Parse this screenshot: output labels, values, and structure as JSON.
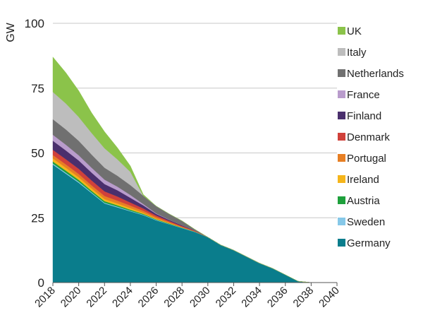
{
  "chart_data": {
    "type": "area",
    "stacked": true,
    "ylabel": "GW",
    "xlabel": "",
    "title": "",
    "ylim": [
      0,
      100
    ],
    "xlim": [
      2018,
      2040
    ],
    "yticks": [
      0,
      25,
      50,
      75,
      100
    ],
    "xticks": [
      2018,
      2020,
      2022,
      2024,
      2026,
      2028,
      2030,
      2032,
      2034,
      2036,
      2038,
      2040
    ],
    "grid": "horizontal",
    "legend_position": "right",
    "x": [
      2018,
      2019,
      2020,
      2021,
      2022,
      2023,
      2024,
      2025,
      2026,
      2027,
      2028,
      2029,
      2030,
      2031,
      2032,
      2033,
      2034,
      2035,
      2036,
      2037,
      2038,
      2039,
      2040
    ],
    "series": [
      {
        "name": "Germany",
        "color": "#0a7d8c",
        "values": [
          45.5,
          42,
          38.5,
          34.5,
          30.5,
          29,
          27.5,
          26,
          24,
          22.5,
          21,
          19.5,
          17.5,
          14.5,
          12.5,
          10,
          7.5,
          5.5,
          3,
          0.5,
          0,
          0,
          0
        ]
      },
      {
        "name": "Sweden",
        "color": "#86c8e8",
        "values": [
          0.4,
          0.4,
          0.4,
          0.3,
          0.3,
          0.3,
          0.2,
          0.2,
          0.2,
          0.1,
          0.1,
          0.1,
          0,
          0,
          0,
          0,
          0,
          0,
          0,
          0,
          0,
          0,
          0
        ]
      },
      {
        "name": "Austria",
        "color": "#1ea03c",
        "values": [
          0.8,
          0.8,
          0.7,
          0.6,
          0.6,
          0.5,
          0.4,
          0.3,
          0.2,
          0.2,
          0.1,
          0.1,
          0,
          0,
          0,
          0,
          0,
          0,
          0,
          0,
          0,
          0,
          0
        ]
      },
      {
        "name": "Ireland",
        "color": "#f5b51b",
        "values": [
          1.2,
          1.1,
          1.0,
          0.9,
          0.8,
          0.7,
          0.6,
          0.4,
          0.3,
          0.2,
          0.1,
          0,
          0,
          0,
          0,
          0,
          0,
          0,
          0,
          0,
          0,
          0,
          0
        ]
      },
      {
        "name": "Portugal",
        "color": "#e77f24",
        "values": [
          1.3,
          1.3,
          1.3,
          1.2,
          1.2,
          1.1,
          1.0,
          0.8,
          0.6,
          0.4,
          0.2,
          0.1,
          0,
          0,
          0,
          0,
          0,
          0,
          0,
          0,
          0,
          0,
          0
        ]
      },
      {
        "name": "Denmark",
        "color": "#d0413a",
        "values": [
          2.0,
          2.0,
          2.0,
          1.9,
          1.8,
          1.6,
          1.2,
          0.9,
          0.6,
          0.4,
          0.3,
          0.2,
          0,
          0,
          0,
          0,
          0,
          0,
          0,
          0,
          0,
          0,
          0
        ]
      },
      {
        "name": "Finland",
        "color": "#4a2f6d",
        "values": [
          3.5,
          3.4,
          3.2,
          3.0,
          2.8,
          2.4,
          1.8,
          1.2,
          0.6,
          0.4,
          0.3,
          0.1,
          0,
          0,
          0,
          0,
          0,
          0,
          0,
          0,
          0,
          0,
          0
        ]
      },
      {
        "name": "France",
        "color": "#b99ccc",
        "values": [
          2.3,
          2.2,
          2.0,
          1.9,
          1.7,
          1.4,
          1.1,
          0.5,
          0.2,
          0.1,
          0,
          0,
          0,
          0,
          0,
          0,
          0,
          0,
          0,
          0,
          0,
          0,
          0
        ]
      },
      {
        "name": "Netherlands",
        "color": "#707070",
        "values": [
          6.0,
          5.9,
          5.6,
          5.1,
          4.6,
          4.2,
          3.8,
          3.2,
          2.8,
          2.2,
          1.7,
          0.4,
          0,
          0,
          0,
          0,
          0,
          0,
          0,
          0,
          0,
          0,
          0
        ]
      },
      {
        "name": "Italy",
        "color": "#bdbdbd",
        "values": [
          10.5,
          10.0,
          9.2,
          8.3,
          7.5,
          6.3,
          5.1,
          0,
          0,
          0,
          0,
          0,
          0,
          0,
          0,
          0,
          0,
          0,
          0,
          0,
          0,
          0,
          0
        ]
      },
      {
        "name": "UK",
        "color": "#8bc34a",
        "values": [
          13.5,
          11.9,
          10.1,
          7.8,
          6.4,
          4.5,
          2.3,
          0.5,
          0,
          0,
          0,
          0,
          0,
          0,
          0,
          0,
          0,
          0,
          0,
          0,
          0,
          0,
          0
        ]
      }
    ],
    "legend_order": [
      "UK",
      "Italy",
      "Netherlands",
      "France",
      "Finland",
      "Denmark",
      "Portugal",
      "Ireland",
      "Austria",
      "Sweden",
      "Germany"
    ]
  }
}
